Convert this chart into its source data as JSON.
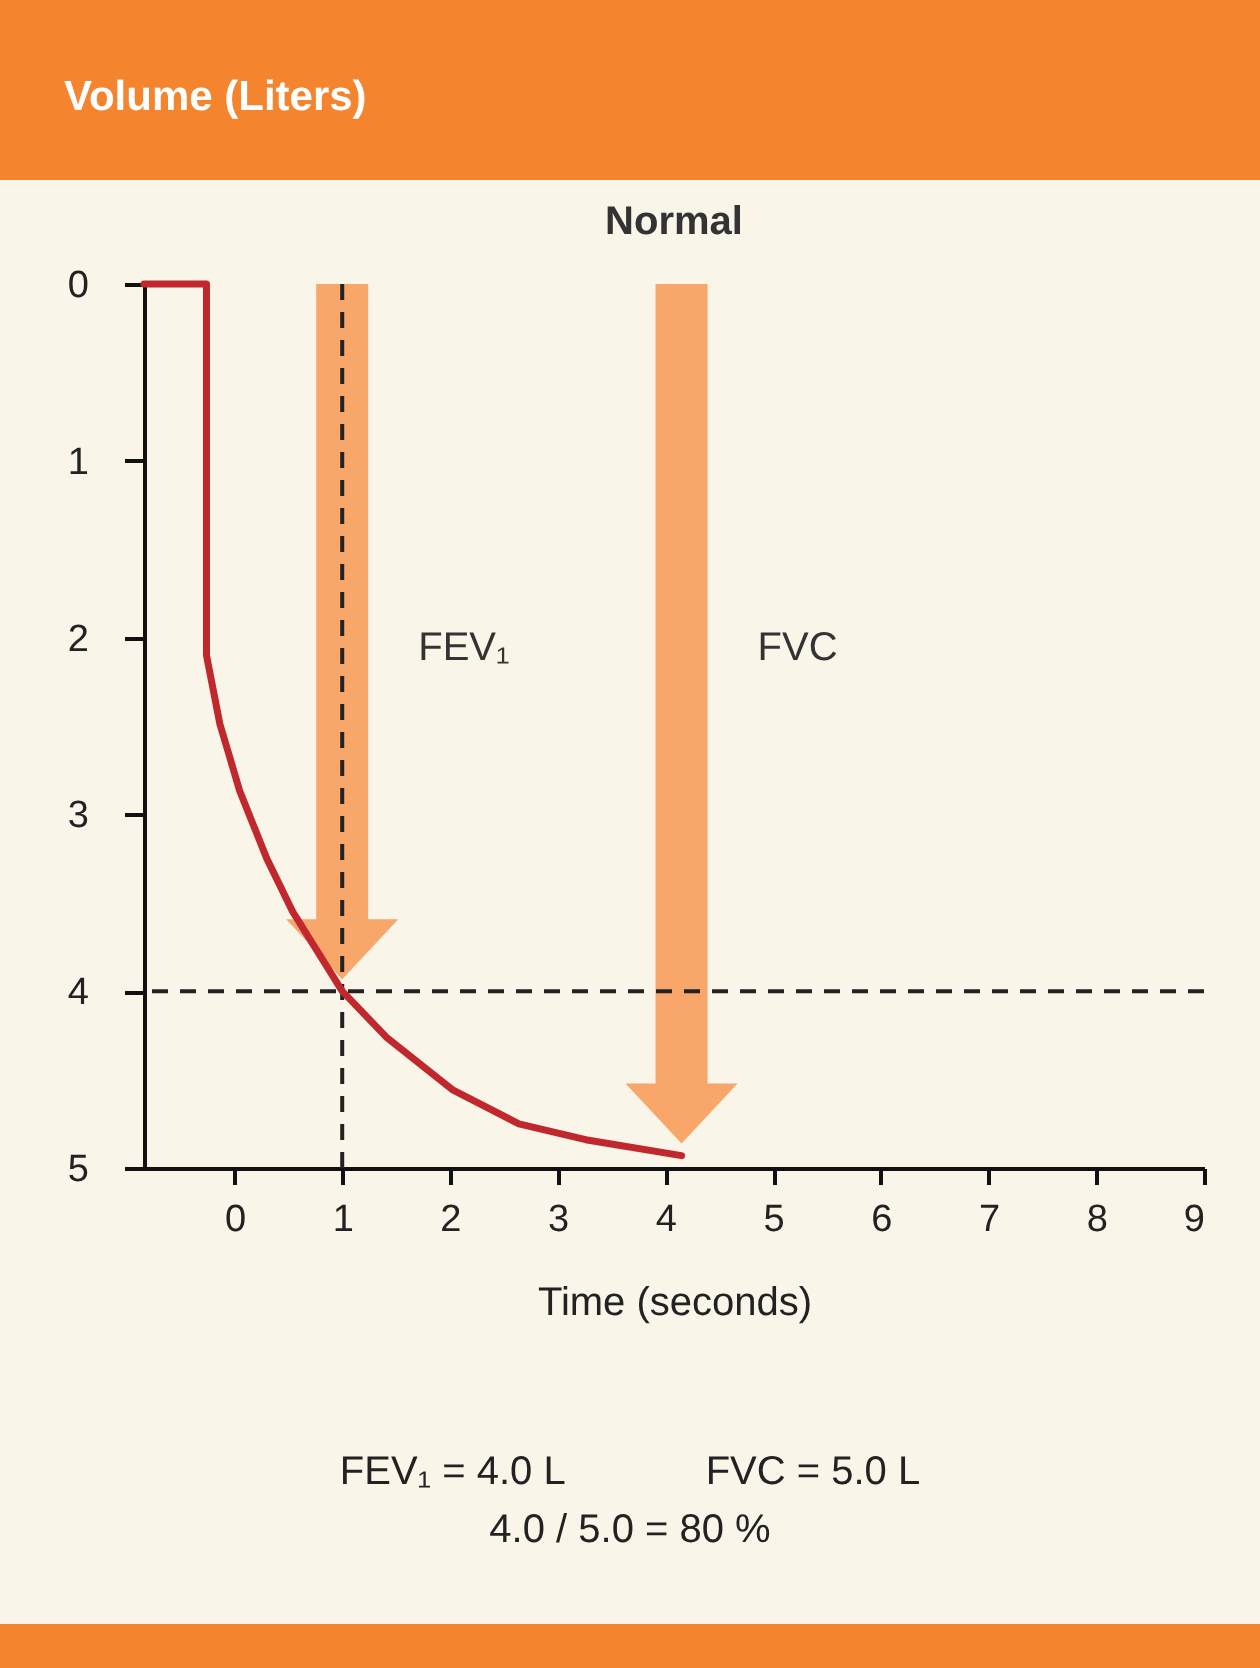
{
  "chart_data": {
    "type": "line",
    "title": "Normal",
    "xlabel": "Time (seconds)",
    "ylabel": "Volume (Liters)",
    "x": [
      -0.84,
      -0.26,
      -0.26,
      -0.135,
      0.05,
      0.3,
      0.54,
      1,
      1.41,
      2.03,
      2.64,
      3.26,
      4.15
    ],
    "series": [
      {
        "color": "#c0282d",
        "values": [
          0,
          0,
          2.1,
          2.49,
          2.87,
          3.25,
          3.55,
          4,
          4.26,
          4.56,
          4.75,
          4.84,
          4.93
        ]
      }
    ],
    "xlim": [
      -0.84,
      9
    ],
    "xticks": [
      0,
      1,
      2,
      3,
      4,
      5,
      6,
      7,
      8,
      9
    ],
    "ylim": [
      5,
      0
    ],
    "yticks": [
      0,
      1,
      2,
      3,
      4,
      5
    ],
    "ref_lines": [
      {
        "axis": "x",
        "value": 1,
        "line_style": "dashed",
        "color": "#222222"
      },
      {
        "axis": "y",
        "value": 4,
        "line_style": "dashed",
        "color": "#222222"
      }
    ],
    "annotations": [
      "FEV₁",
      "FVC",
      "FEV₁ = 4.0 L",
      "FVC = 5.0 L",
      "4.0 / 5.0 = 80 %"
    ]
  }
}
